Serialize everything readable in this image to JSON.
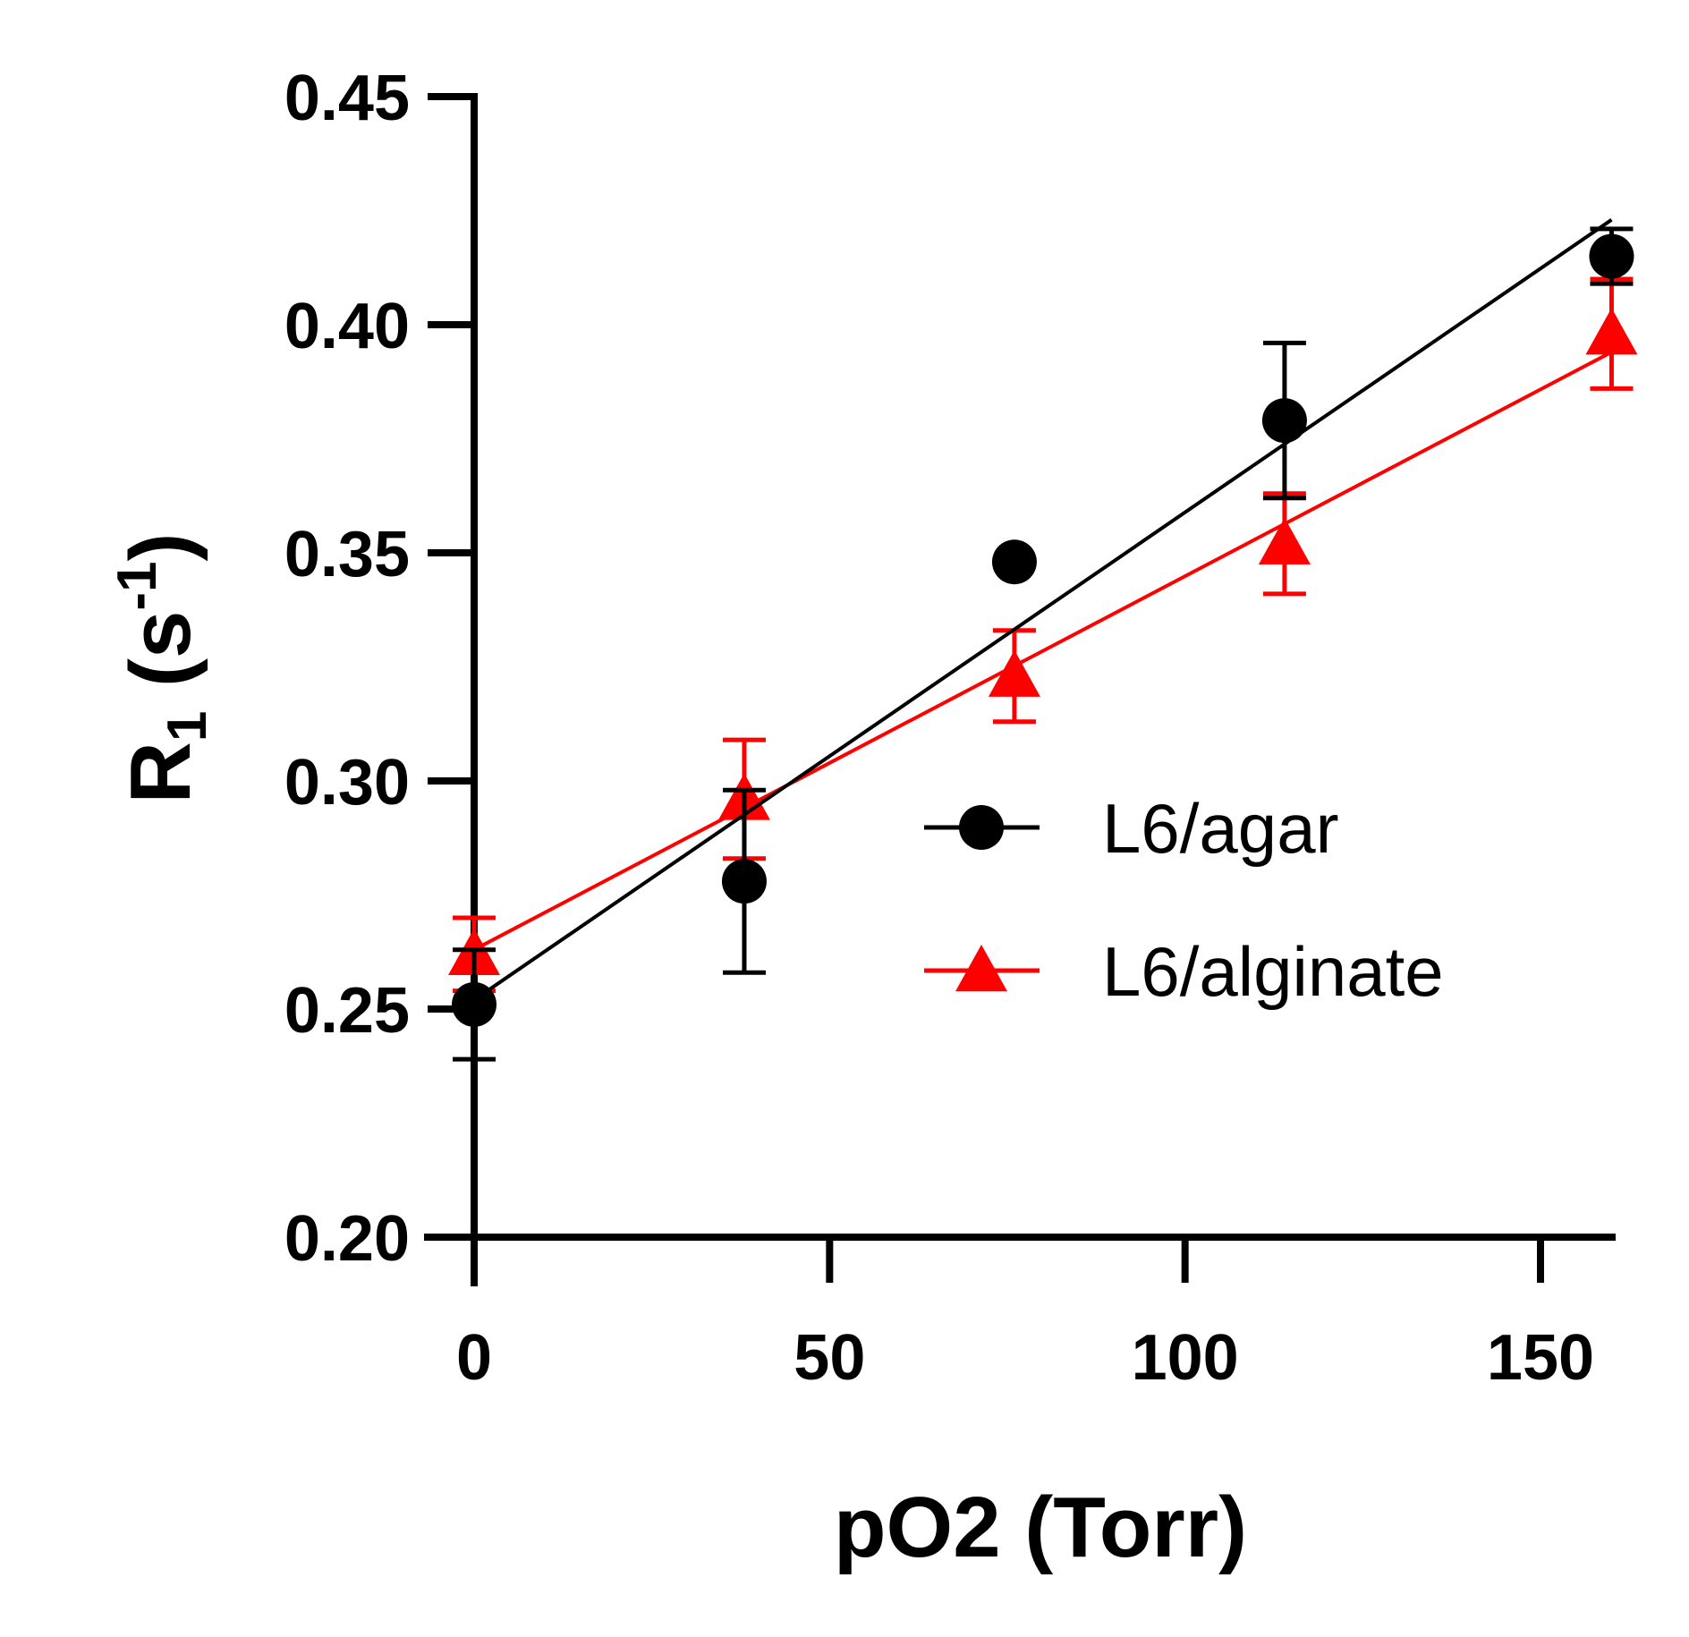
{
  "chart_data": {
    "type": "scatter",
    "xlabel": "pO2 (Torr)",
    "ylabel": {
      "base": "R",
      "base_subscript": "1",
      "unit_open": " (s",
      "unit_superscript": "-1",
      "unit_close": ")"
    },
    "xlim": [
      0,
      160
    ],
    "ylim": [
      0.2,
      0.45
    ],
    "x_ticks": [
      0,
      50,
      100,
      150
    ],
    "x_tick_labels": [
      "0",
      "50",
      "100",
      "150"
    ],
    "y_ticks": [
      0.2,
      0.25,
      0.3,
      0.35,
      0.4,
      0.45
    ],
    "y_tick_labels": [
      "0.20",
      "0.25",
      "0.30",
      "0.35",
      "0.40",
      "0.45"
    ],
    "grid": false,
    "legend_position": "right",
    "series": [
      {
        "name": "L6/agar",
        "color": "#000000",
        "marker": "circle",
        "x": [
          0,
          38,
          76,
          114,
          160
        ],
        "y": [
          0.251,
          0.278,
          0.348,
          0.379,
          0.415
        ],
        "err": [
          0.012,
          0.02,
          0.0,
          0.017,
          0.006
        ],
        "fit": [
          [
            0,
            0.252
          ],
          [
            160,
            0.423
          ]
        ]
      },
      {
        "name": "L6/alginate",
        "color": "#ff0000",
        "marker": "triangle",
        "x": [
          0,
          38,
          76,
          114,
          160
        ],
        "y": [
          0.262,
          0.296,
          0.323,
          0.352,
          0.398
        ],
        "err": [
          0.008,
          0.013,
          0.01,
          0.011,
          0.012
        ],
        "fit": [
          [
            0,
            0.263
          ],
          [
            160,
            0.394
          ]
        ]
      }
    ]
  }
}
